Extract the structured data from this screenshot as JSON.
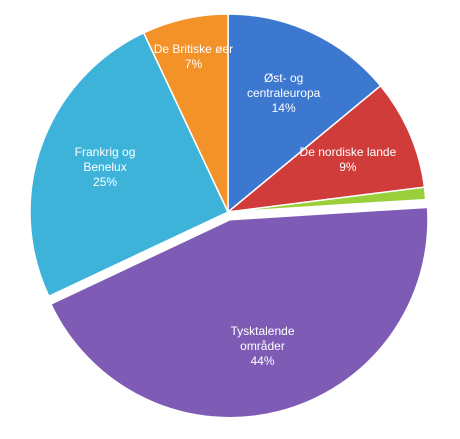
{
  "chart_data": {
    "type": "pie",
    "categories": [
      "Øst- og centraleuropa",
      "De nordiske lande",
      null,
      "Tysktalende områder",
      "Frankrig og Benelux",
      "De Britiske øer"
    ],
    "values": [
      14,
      9,
      1,
      44,
      25,
      7
    ],
    "value_labels": [
      "14%",
      "9%",
      null,
      "44%",
      "25%",
      "7%"
    ],
    "colors": [
      "#3c78d0",
      "#d03c3a",
      "#9bcf3a",
      "#7e5cb6",
      "#3db3da",
      "#f39228"
    ],
    "exploded": [
      false,
      false,
      false,
      true,
      false,
      false
    ]
  }
}
